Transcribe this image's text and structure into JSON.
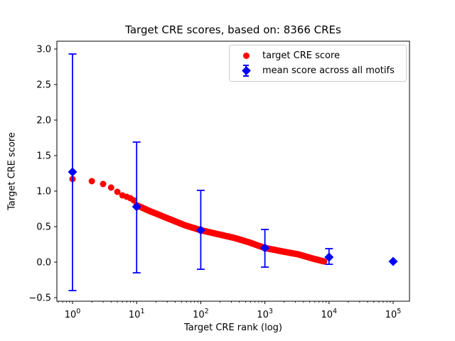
{
  "chart_data": {
    "type": "scatter",
    "title": "Target CRE scores, based on: 8366 CREs",
    "xlabel": "Target CRE rank (log)",
    "ylabel": "Target CRE score",
    "x_scale": "log",
    "x_tick_exponents": [
      0,
      1,
      2,
      3,
      4,
      5
    ],
    "x_tick_base": "10",
    "y_ticks": [
      3.0,
      2.5,
      2.0,
      1.5,
      1.0,
      0.5,
      0.0,
      -0.5
    ],
    "y_tick_labels": [
      "3.0",
      "2.5",
      "2.0",
      "1.5",
      "1.0",
      "0.5",
      "0.0",
      "−0.5"
    ],
    "xlim_log10": [
      -0.244,
      5.25
    ],
    "ylim": [
      -0.55,
      3.11
    ],
    "grid": false,
    "legend_position": "upper right",
    "n_cres": 8366,
    "series": [
      {
        "name": "target CRE score",
        "marker": "circle",
        "color": "#ff0000",
        "n_points": 8366,
        "rank_range": [
          1,
          8366
        ],
        "head_points_rank_score": [
          [
            1,
            1.17
          ],
          [
            2,
            1.14
          ],
          [
            3,
            1.1
          ],
          [
            4,
            1.05
          ],
          [
            5,
            0.99
          ],
          [
            6,
            0.94
          ],
          [
            7,
            0.92
          ],
          [
            8,
            0.9
          ],
          [
            9,
            0.87
          ]
        ],
        "band_curve_log10rank_score": [
          [
            1.0,
            0.8
          ],
          [
            1.08,
            0.77
          ],
          [
            1.2,
            0.72
          ],
          [
            1.3,
            0.685
          ],
          [
            1.42,
            0.64
          ],
          [
            1.6,
            0.575
          ],
          [
            1.75,
            0.52
          ],
          [
            2.0,
            0.45
          ],
          [
            2.19,
            0.41
          ],
          [
            2.53,
            0.34
          ],
          [
            2.75,
            0.28
          ],
          [
            3.0,
            0.2
          ],
          [
            3.25,
            0.155
          ],
          [
            3.52,
            0.11
          ],
          [
            3.75,
            0.05
          ],
          [
            3.9225,
            0.01
          ]
        ]
      },
      {
        "name": "mean score across all motifs",
        "marker": "diamond",
        "color": "#0000ff",
        "x": [
          1,
          10,
          100,
          1000,
          10000,
          100000
        ],
        "y": [
          1.27,
          0.78,
          0.45,
          0.2,
          0.07,
          0.01
        ],
        "err_low": [
          -0.4,
          -0.15,
          -0.1,
          -0.07,
          -0.03,
          0.01
        ],
        "err_high": [
          2.93,
          1.69,
          1.01,
          0.46,
          0.19,
          0.01
        ]
      }
    ]
  }
}
